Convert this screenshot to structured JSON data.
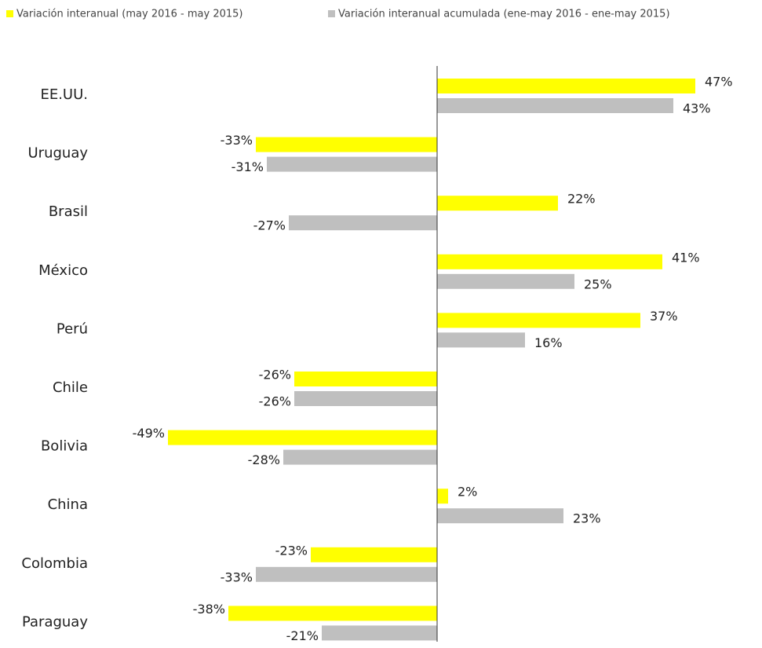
{
  "chart_data": {
    "type": "barh",
    "categories": [
      "EE.UU.",
      "Uruguay",
      "Brasil",
      "México",
      "Perú",
      "Chile",
      "Bolivia",
      "China",
      "Colombia",
      "Paraguay"
    ],
    "series": [
      {
        "name": "Variación interanual (may 2016 - may 2015)",
        "color": "#ffff00",
        "values": [
          47,
          -33,
          22,
          41,
          37,
          -26,
          -49,
          2,
          -23,
          -38
        ],
        "value_labels": [
          "47%",
          "-33%",
          "22%",
          "41%",
          "37%",
          "-26%",
          "-49%",
          "2%",
          "-23%",
          "-38%"
        ]
      },
      {
        "name": "Variación interanual acumulada (ene-may 2016 - ene-may 2015)",
        "color": "#bfbfbf",
        "values": [
          43,
          -31,
          -27,
          25,
          16,
          -26,
          -28,
          23,
          -33,
          -21
        ],
        "value_labels": [
          "43%",
          "-31%",
          "-27%",
          "25%",
          "16%",
          "-26%",
          "-28%",
          "23%",
          "-33%",
          "-21%"
        ]
      }
    ],
    "xlim": [
      -56,
      56
    ]
  }
}
